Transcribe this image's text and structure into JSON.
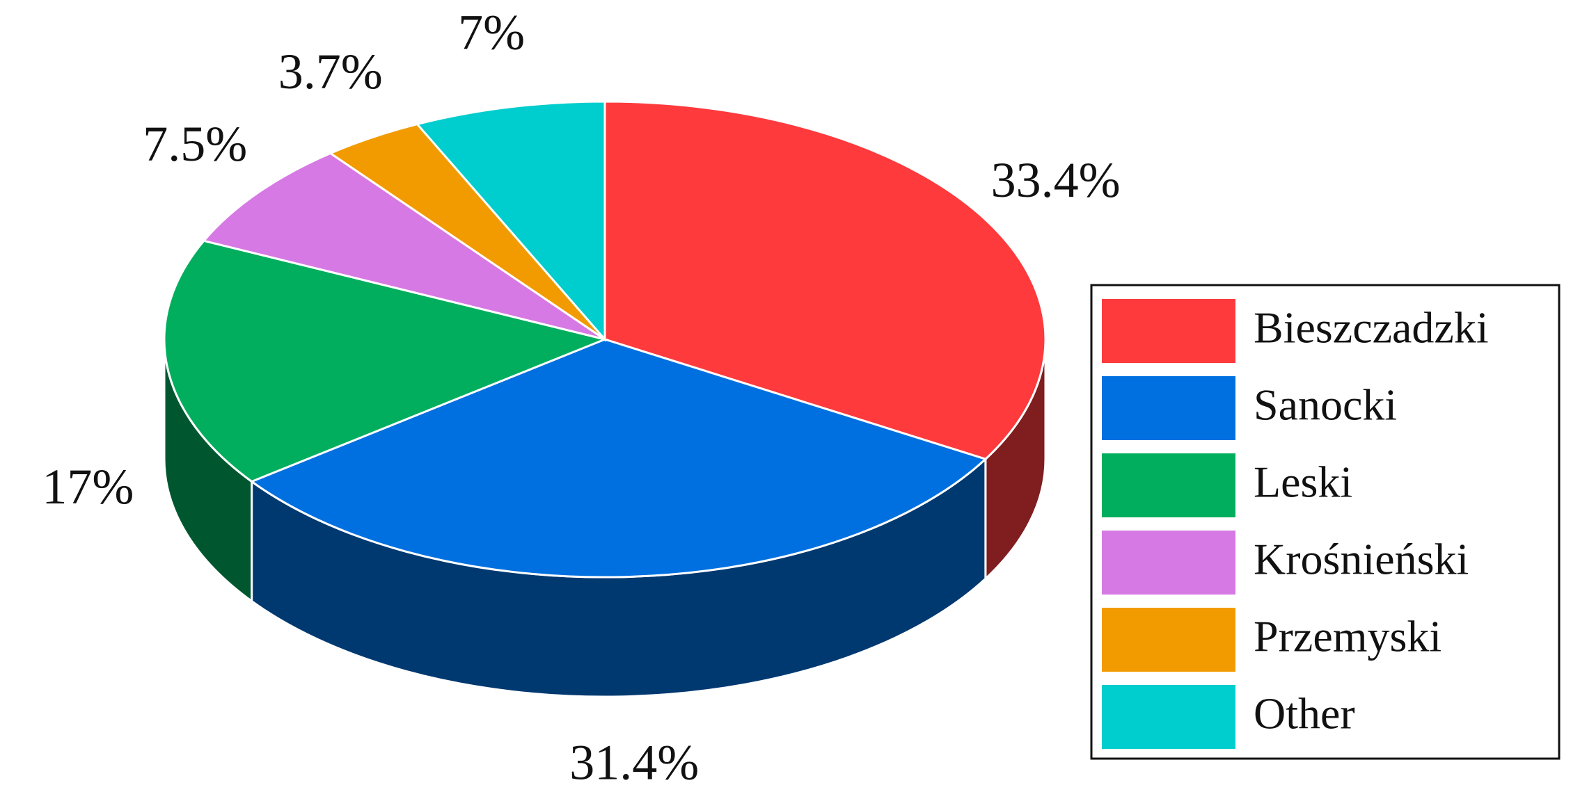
{
  "chart_data": {
    "type": "pie3d",
    "categories": [
      "Bieszczadzki",
      "Sanocki",
      "Leski",
      "Krośnieński",
      "Przemyski",
      "Other"
    ],
    "values": [
      33.4,
      31.4,
      17,
      7.5,
      3.7,
      7
    ],
    "value_labels": [
      "33.4%",
      "31.4%",
      "17%",
      "7.5%",
      "3.7%",
      "7%"
    ],
    "colors": [
      "#fe3a3d",
      "#0070e0",
      "#00ae5d",
      "#d679e4",
      "#f29b00",
      "#00cdcd"
    ],
    "legend": "right"
  }
}
